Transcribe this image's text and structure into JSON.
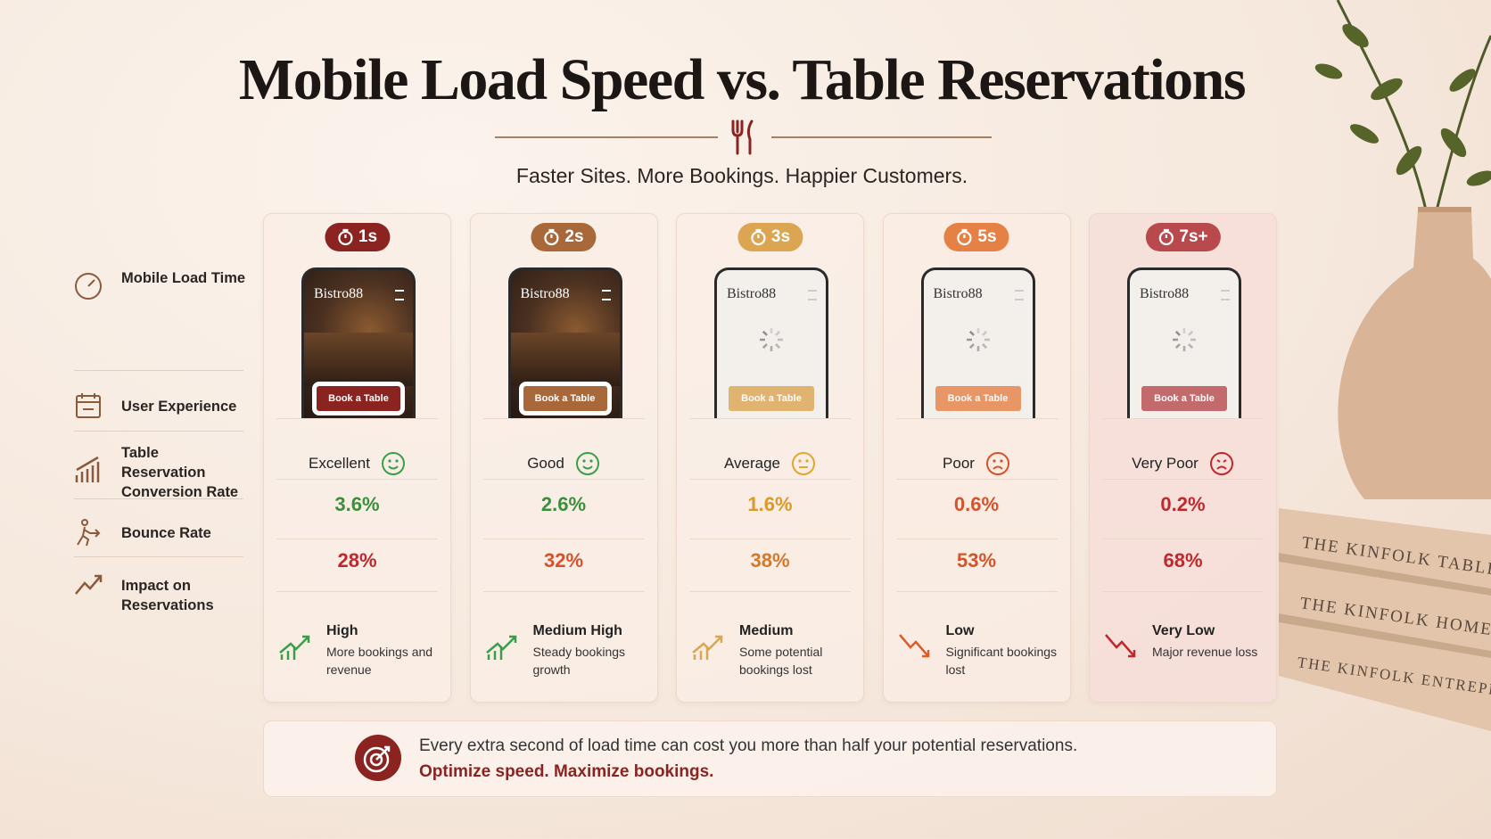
{
  "header": {
    "title": "Mobile Load Speed vs. Table Reservations",
    "subtitle": "Faster Sites. More Bookings. Happier Customers."
  },
  "row_labels": [
    "Mobile Load Time",
    "User Experience",
    "Table Reservation Conversion Rate",
    "Bounce Rate",
    "Impact on Reservations"
  ],
  "columns": [
    {
      "load_time": "1s",
      "brand": "Bistro88",
      "button": "Book a Table",
      "experience": "Excellent",
      "conversion": "3.6%",
      "bounce": "28%",
      "impact": "High",
      "impact_note": "More bookings and revenue"
    },
    {
      "load_time": "2s",
      "brand": "Bistro88",
      "button": "Book a Table",
      "experience": "Good",
      "conversion": "2.6%",
      "bounce": "32%",
      "impact": "Medium High",
      "impact_note": "Steady bookings growth"
    },
    {
      "load_time": "3s",
      "brand": "Bistro88",
      "button": "Book a Table",
      "experience": "Average",
      "conversion": "1.6%",
      "bounce": "38%",
      "impact": "Medium",
      "impact_note": "Some potential bookings lost"
    },
    {
      "load_time": "5s",
      "brand": "Bistro88",
      "button": "Book a Table",
      "experience": "Poor",
      "conversion": "0.6%",
      "bounce": "53%",
      "impact": "Low",
      "impact_note": "Significant bookings lost"
    },
    {
      "load_time": "7s+",
      "brand": "Bistro88",
      "button": "Book a Table",
      "experience": "Very Poor",
      "conversion": "0.2%",
      "bounce": "68%",
      "impact": "Very Low",
      "impact_note": "Major revenue loss"
    }
  ],
  "footer": {
    "text": "Every extra second of load time can cost you more than half your potential reservations.",
    "highlight": "Optimize speed. Maximize bookings."
  },
  "books": [
    "THE KINFOLK TABLE",
    "THE KINFOLK HOME",
    "THE KINFOLK ENTREPRENEUR"
  ]
}
